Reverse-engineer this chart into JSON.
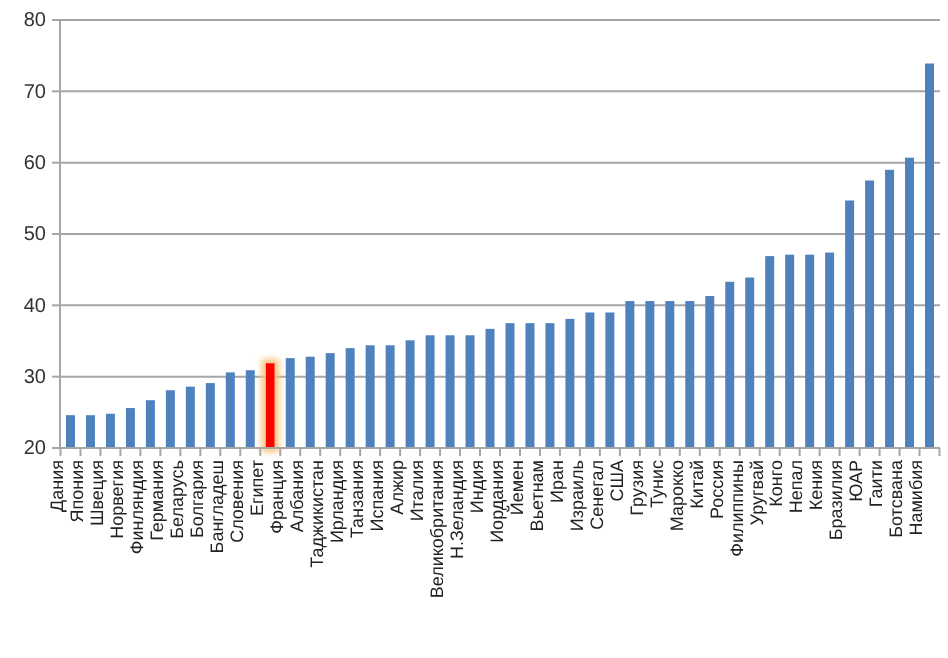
{
  "chart_data": {
    "type": "bar",
    "categories": [
      "Дания",
      "Япония",
      "Швеция",
      "Норвегия",
      "Финляндия",
      "Германия",
      "Беларусь",
      "Болгария",
      "Бангладеш",
      "Словения",
      "Египет",
      "Франция",
      "Албания",
      "Таджикистан",
      "Ирландия",
      "Танзания",
      "Испания",
      "Алжир",
      "Италия",
      "Великобритания",
      "Н.Зеландия",
      "Индия",
      "Иордания",
      "Йемен",
      "Вьетнам",
      "Иран",
      "Израиль",
      "Сенегал",
      "США",
      "Грузия",
      "Тунис",
      "Марокко",
      "Китай",
      "Россия",
      "Филиппины",
      "Уругвай",
      "Конго",
      "Непал",
      "Кения",
      "Бразилия",
      "ЮАР",
      "Гаити",
      "Ботсвана",
      "Намибия"
    ],
    "values": [
      24.6,
      24.6,
      24.8,
      25.6,
      26.7,
      28.1,
      28.6,
      29.1,
      30.6,
      30.9,
      31.9,
      32.6,
      32.8,
      33.3,
      34.0,
      34.4,
      34.4,
      35.1,
      35.8,
      35.8,
      35.8,
      36.7,
      37.5,
      37.5,
      37.5,
      38.1,
      39.0,
      39.0,
      40.6,
      40.6,
      40.6,
      40.6,
      41.3,
      43.3,
      43.9,
      46.9,
      47.1,
      47.1,
      47.4,
      54.7,
      57.5,
      59.0,
      60.7,
      73.9
    ],
    "colors": [
      "#4f81bd",
      "#4f81bd",
      "#4f81bd",
      "#4f81bd",
      "#4f81bd",
      "#4f81bd",
      "#4f81bd",
      "#4f81bd",
      "#4f81bd",
      "#4f81bd",
      "#ff0000",
      "#4f81bd",
      "#4f81bd",
      "#4f81bd",
      "#4f81bd",
      "#4f81bd",
      "#4f81bd",
      "#4f81bd",
      "#4f81bd",
      "#4f81bd",
      "#4f81bd",
      "#4f81bd",
      "#4f81bd",
      "#4f81bd",
      "#4f81bd",
      "#4f81bd",
      "#4f81bd",
      "#4f81bd",
      "#4f81bd",
      "#4f81bd",
      "#4f81bd",
      "#4f81bd",
      "#4f81bd",
      "#4f81bd",
      "#4f81bd",
      "#4f81bd",
      "#4f81bd",
      "#4f81bd",
      "#4f81bd",
      "#4f81bd",
      "#4f81bd",
      "#4f81bd",
      "#4f81bd",
      "#4f81bd"
    ],
    "ylim": [
      20,
      80
    ],
    "yticks": [
      20,
      30,
      40,
      50,
      60,
      70,
      80
    ],
    "grid": "y"
  }
}
